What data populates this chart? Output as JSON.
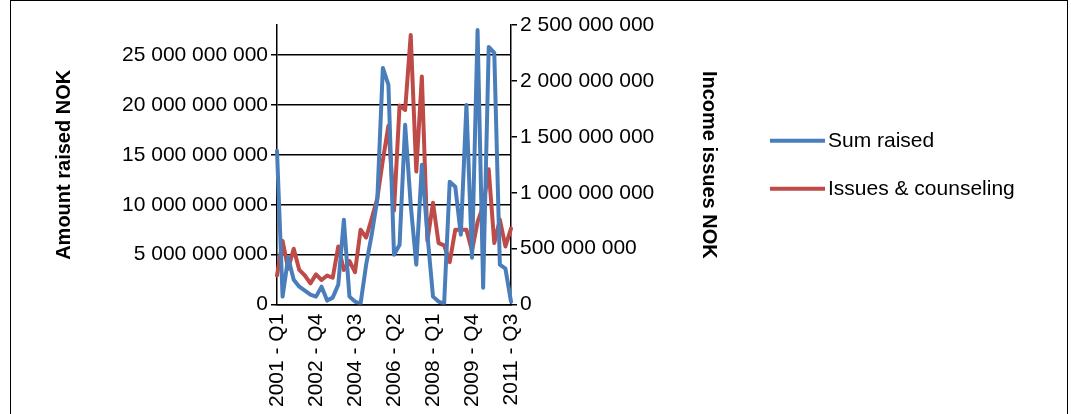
{
  "chart_data": {
    "type": "line",
    "categories": [
      "2001 - Q1",
      null,
      null,
      null,
      null,
      null,
      null,
      "2002 - Q4",
      null,
      null,
      null,
      null,
      null,
      null,
      "2004 - Q3",
      null,
      null,
      null,
      null,
      null,
      null,
      "2006 - Q2",
      null,
      null,
      null,
      null,
      null,
      null,
      "2008 - Q1",
      null,
      null,
      null,
      null,
      null,
      null,
      "2009 - Q4",
      null,
      null,
      null,
      null,
      null,
      null,
      "2011 - Q3"
    ],
    "series": [
      {
        "name": "Sum raised",
        "color": "#4a7ebb",
        "values": [
          15400000000,
          800000000,
          4700000000,
          2500000000,
          1800000000,
          1400000000,
          1000000000,
          800000000,
          1800000000,
          400000000,
          700000000,
          2000000000,
          8500000000,
          800000000,
          300000000,
          100000000,
          4000000000,
          7000000000,
          10500000000,
          23700000000,
          22000000000,
          5000000000,
          6000000000,
          18000000000,
          10000000000,
          4000000000,
          14000000000,
          7000000000,
          800000000,
          300000000,
          100000000,
          12300000000,
          11800000000,
          7000000000,
          20000000000,
          4700000000,
          27500000000,
          1700000000,
          25800000000,
          25200000000,
          4000000000,
          3600000000,
          300000000
        ]
      },
      {
        "name": "Issues & counseling",
        "color": "#be4b48",
        "axis": "y2",
        "values": [
          260000000,
          570000000,
          320000000,
          500000000,
          310000000,
          260000000,
          190000000,
          270000000,
          220000000,
          260000000,
          240000000,
          520000000,
          310000000,
          390000000,
          290000000,
          670000000,
          600000000,
          770000000,
          950000000,
          1290000000,
          1600000000,
          840000000,
          1780000000,
          1740000000,
          2410000000,
          1190000000,
          2040000000,
          570000000,
          910000000,
          550000000,
          530000000,
          380000000,
          670000000,
          670000000,
          670000000,
          480000000,
          740000000,
          880000000,
          1210000000,
          550000000,
          760000000,
          520000000,
          680000000
        ]
      }
    ],
    "ylabel": "Amount raised NOK",
    "y2label": "Income issues NOK",
    "ylim": [
      0,
      28000000000
    ],
    "yticks": [
      0,
      {
        "value": 5000000000,
        "label": "5 000 000 000"
      },
      {
        "value": 10000000000,
        "label": "10 000 000 000"
      },
      {
        "value": 15000000000,
        "label": "15 000 000 000"
      },
      {
        "value": 20000000000,
        "label": "20 000 000 000"
      },
      {
        "value": 25000000000,
        "label": "25 000 000 000"
      }
    ],
    "y2lim": [
      0,
      2500000000
    ],
    "y2ticks": [
      0,
      {
        "value": 500000000,
        "label": "500 000 000"
      },
      {
        "value": 1000000000,
        "label": "1 000 000 000"
      },
      {
        "value": 1500000000,
        "label": "1 500 000 000"
      },
      {
        "value": 2000000000,
        "label": "2 000 000 000"
      },
      {
        "value": 2500000000,
        "label": "2 500 000 000"
      }
    ],
    "grid": "y",
    "legend": "right",
    "marker": "none",
    "line_style": "solid"
  }
}
